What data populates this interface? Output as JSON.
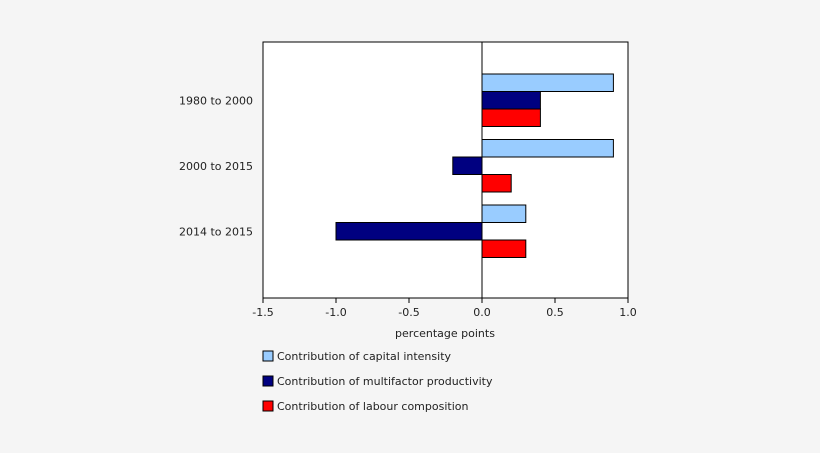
{
  "chart_data": {
    "type": "bar",
    "orientation": "horizontal",
    "categories": [
      "1980 to 2000",
      "2000 to 2015",
      "2014 to 2015"
    ],
    "series": [
      {
        "name": "Contribution of capital intensity",
        "values": [
          0.9,
          0.9,
          0.3
        ],
        "color": "#99ccff"
      },
      {
        "name": "Contribution of multifactor productivity",
        "values": [
          0.4,
          -0.2,
          -1.0
        ],
        "color": "#000080"
      },
      {
        "name": "Contribution of labour composition",
        "values": [
          0.4,
          0.2,
          0.3
        ],
        "color": "#ff0000"
      }
    ],
    "xlabel": "percentage points",
    "ylabel": "",
    "xlim": [
      -1.5,
      1.0
    ],
    "xticks": [
      -1.5,
      -1.0,
      -0.5,
      0.0,
      0.5,
      1.0
    ],
    "xtick_labels": [
      "-1.5",
      "-1.0",
      "-0.5",
      "0.0",
      "0.5",
      "1.0"
    ],
    "grid": false,
    "legend_position": "bottom-left"
  }
}
